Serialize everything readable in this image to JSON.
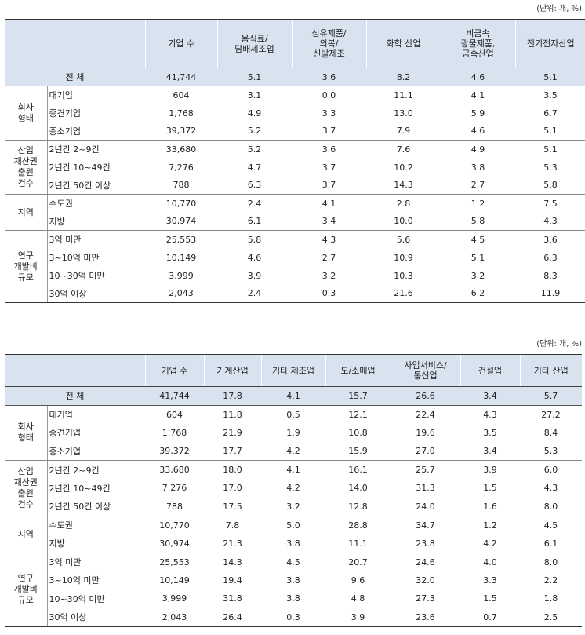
{
  "table1": {
    "unit": "(단위: 개, %)",
    "columns": [
      "기업 수",
      "음식료/\n담배제조업",
      "섬유제품/\n의복/\n신발제조",
      "화학 산업",
      "비금속\n광물제품,\n금속산업",
      "전기전자산업"
    ],
    "total": {
      "label": "전 체",
      "values": [
        "41,744",
        "5.1",
        "3.6",
        "8.2",
        "4.6",
        "5.1"
      ]
    },
    "groups": [
      {
        "label": "회사\n형태",
        "rows": [
          {
            "label": "대기업",
            "values": [
              "604",
              "3.1",
              "0.0",
              "11.1",
              "4.1",
              "3.5"
            ]
          },
          {
            "label": "중견기업",
            "values": [
              "1,768",
              "4.9",
              "3.3",
              "13.0",
              "5.9",
              "6.7"
            ]
          },
          {
            "label": "중소기업",
            "values": [
              "39,372",
              "5.2",
              "3.7",
              "7.9",
              "4.6",
              "5.1"
            ]
          }
        ]
      },
      {
        "label": "산업\n재산권\n출원\n건수",
        "rows": [
          {
            "label": "2년간 2~9건",
            "values": [
              "33,680",
              "5.2",
              "3.6",
              "7.6",
              "4.9",
              "5.1"
            ]
          },
          {
            "label": "2년간 10~49건",
            "values": [
              "7,276",
              "4.7",
              "3.7",
              "10.2",
              "3.8",
              "5.3"
            ]
          },
          {
            "label": "2년간 50건 이상",
            "values": [
              "788",
              "6.3",
              "3.7",
              "14.3",
              "2.7",
              "5.8"
            ]
          }
        ]
      },
      {
        "label": "지역",
        "rows": [
          {
            "label": "수도권",
            "values": [
              "10,770",
              "2.4",
              "4.1",
              "2.8",
              "1.2",
              "7.5"
            ]
          },
          {
            "label": "지방",
            "values": [
              "30,974",
              "6.1",
              "3.4",
              "10.0",
              "5.8",
              "4.3"
            ]
          }
        ]
      },
      {
        "label": "연구\n개발비\n규모",
        "rows": [
          {
            "label": "3억 미만",
            "values": [
              "25,553",
              "5.8",
              "4.3",
              "5.6",
              "4.5",
              "3.6"
            ]
          },
          {
            "label": "3~10억 미만",
            "values": [
              "10,149",
              "4.6",
              "2.7",
              "10.9",
              "5.1",
              "6.3"
            ]
          },
          {
            "label": "10~30억 미만",
            "values": [
              "3,999",
              "3.9",
              "3.2",
              "10.3",
              "3.2",
              "8.3"
            ]
          },
          {
            "label": "30억 이상",
            "values": [
              "2,043",
              "2.4",
              "0.3",
              "21.6",
              "6.2",
              "11.9"
            ]
          }
        ]
      }
    ]
  },
  "table2": {
    "unit": "(단위: 개, %)",
    "columns": [
      "기업 수",
      "기계산업",
      "기타 제조업",
      "도/소매업",
      "사업서비스/\n통신업",
      "건설업",
      "기타 산업"
    ],
    "total": {
      "label": "전 체",
      "values": [
        "41,744",
        "17.8",
        "4.1",
        "15.7",
        "26.6",
        "3.4",
        "5.7"
      ]
    },
    "groups": [
      {
        "label": "회사\n형태",
        "rows": [
          {
            "label": "대기업",
            "values": [
              "604",
              "11.8",
              "0.5",
              "12.1",
              "22.4",
              "4.3",
              "27.2"
            ]
          },
          {
            "label": "중견기업",
            "values": [
              "1,768",
              "21.9",
              "1.9",
              "10.8",
              "19.6",
              "3.5",
              "8.4"
            ]
          },
          {
            "label": "중소기업",
            "values": [
              "39,372",
              "17.7",
              "4.2",
              "15.9",
              "27.0",
              "3.4",
              "5.3"
            ]
          }
        ]
      },
      {
        "label": "산업\n재산권\n출원\n건수",
        "rows": [
          {
            "label": "2년간 2~9건",
            "values": [
              "33,680",
              "18.0",
              "4.1",
              "16.1",
              "25.7",
              "3.9",
              "6.0"
            ]
          },
          {
            "label": "2년간 10~49건",
            "values": [
              "7,276",
              "17.0",
              "4.2",
              "14.0",
              "31.3",
              "1.5",
              "4.3"
            ]
          },
          {
            "label": "2년간 50건 이상",
            "values": [
              "788",
              "17.5",
              "3.2",
              "12.8",
              "24.0",
              "1.6",
              "8.0"
            ]
          }
        ]
      },
      {
        "label": "지역",
        "rows": [
          {
            "label": "수도권",
            "values": [
              "10,770",
              "7.8",
              "5.0",
              "28.8",
              "34.7",
              "1.2",
              "4.5"
            ]
          },
          {
            "label": "지방",
            "values": [
              "30,974",
              "21.3",
              "3.8",
              "11.1",
              "23.8",
              "4.2",
              "6.1"
            ]
          }
        ]
      },
      {
        "label": "연구\n개발비\n규모",
        "rows": [
          {
            "label": "3억 미만",
            "values": [
              "25,553",
              "14.3",
              "4.5",
              "20.7",
              "24.6",
              "4.0",
              "8.0"
            ]
          },
          {
            "label": "3~10억 미만",
            "values": [
              "10,149",
              "19.4",
              "3.8",
              "9.6",
              "32.0",
              "3.3",
              "2.2"
            ]
          },
          {
            "label": "10~30억 미만",
            "values": [
              "3,999",
              "31.8",
              "3.8",
              "4.8",
              "27.3",
              "1.5",
              "1.8"
            ]
          },
          {
            "label": "30억 이상",
            "values": [
              "2,043",
              "26.4",
              "0.3",
              "3.9",
              "23.6",
              "0.7",
              "2.5"
            ]
          }
        ]
      }
    ]
  }
}
